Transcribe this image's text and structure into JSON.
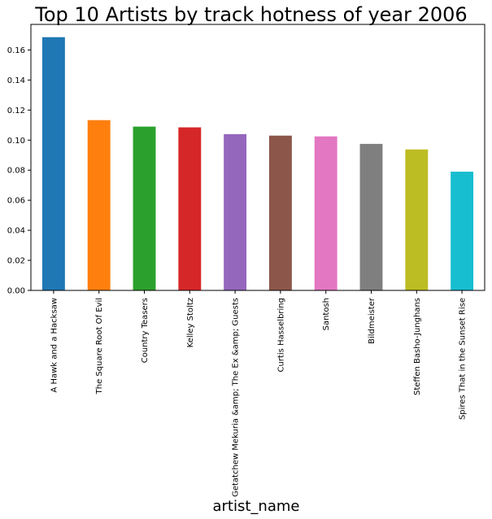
{
  "chart_data": {
    "type": "bar",
    "title": "Top 10 Artists by track hotness of year 2006",
    "xlabel": "artist_name",
    "ylabel": "",
    "categories": [
      "A Hawk and a Hacksaw",
      "The Square Root Of Evil",
      "Country Teasers",
      "Kelley Stoltz",
      "Getatchew Mekuria &amp; The Ex &amp; Guests",
      "Curtis Hasselbring",
      "Santosh",
      "Bildmeister",
      "Steffen Basho-Junghans",
      "Spires That in the Sunset Rise"
    ],
    "values": [
      0.1685,
      0.1133,
      0.109,
      0.1085,
      0.104,
      0.103,
      0.1025,
      0.0975,
      0.0938,
      0.079
    ],
    "colors": [
      "#1f77b4",
      "#ff7f0e",
      "#2ca02c",
      "#d62728",
      "#9467bd",
      "#8c564b",
      "#e377c2",
      "#7f7f7f",
      "#bcbd22",
      "#17becf"
    ],
    "ylim": [
      0,
      0.177
    ],
    "yticks": [
      "0.00",
      "0.02",
      "0.04",
      "0.06",
      "0.08",
      "0.10",
      "0.12",
      "0.14",
      "0.16"
    ],
    "grid": false,
    "legend": "none"
  }
}
